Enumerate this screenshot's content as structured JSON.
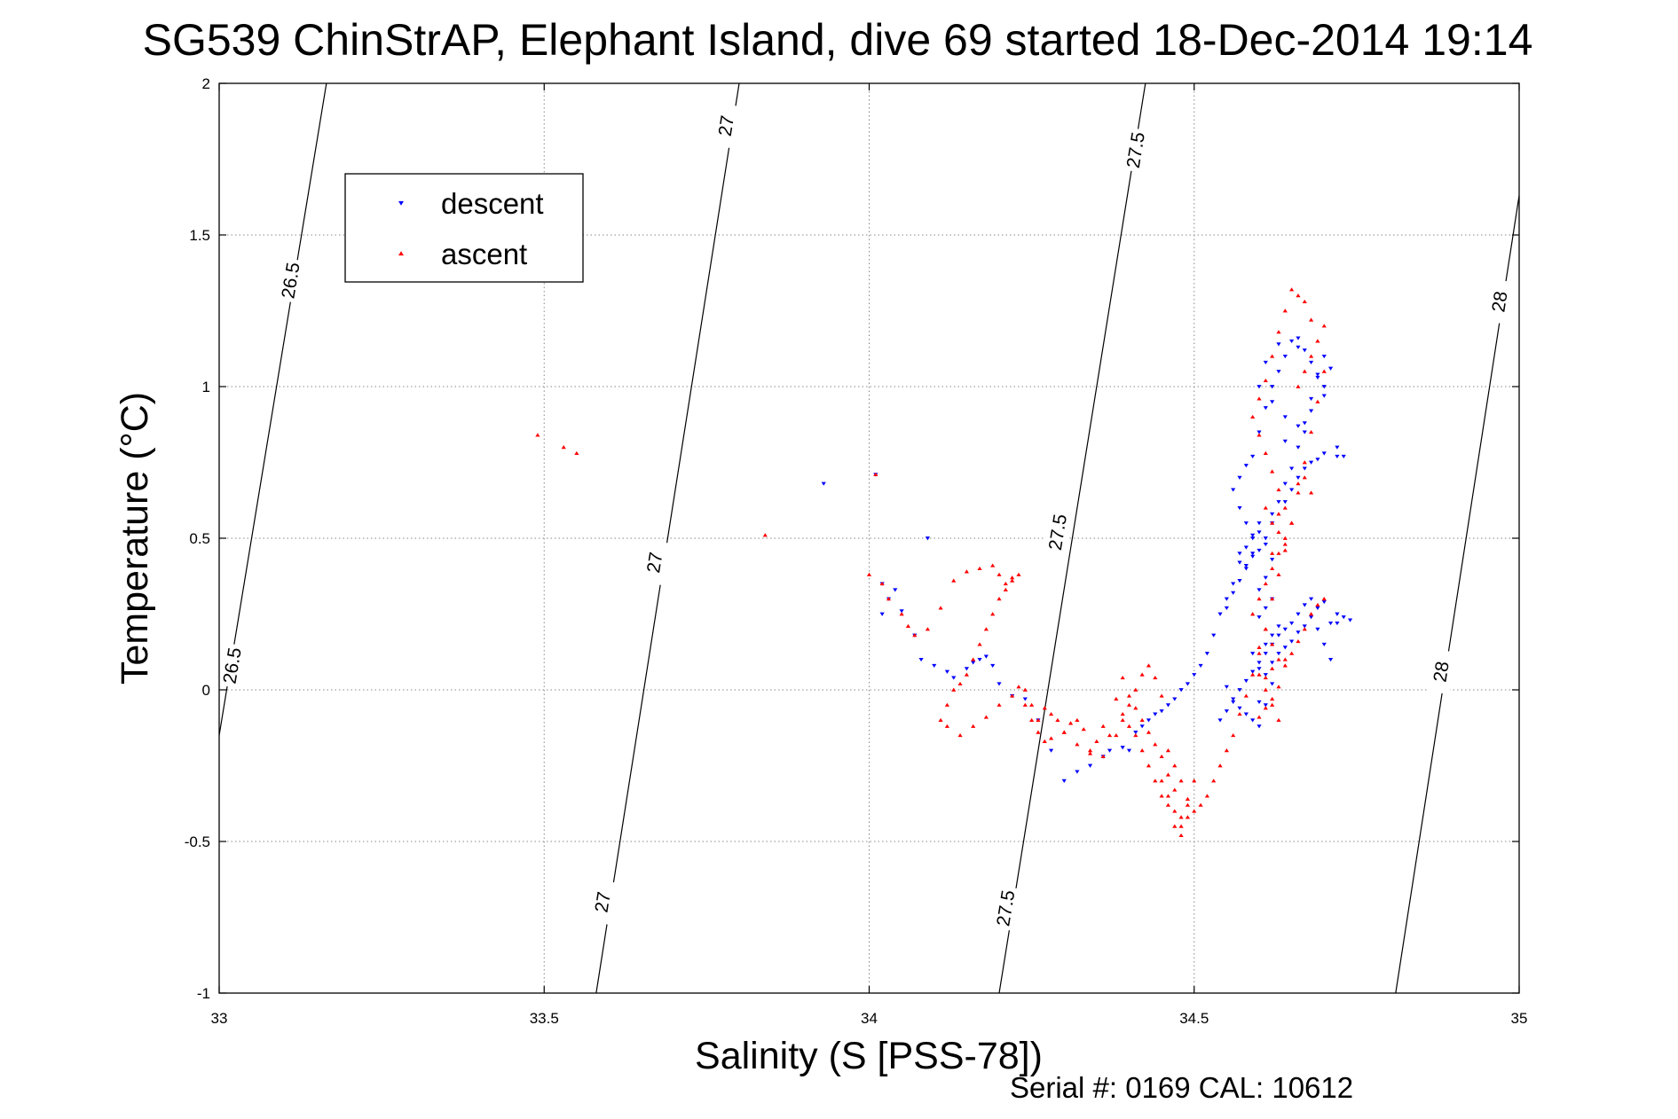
{
  "chart_data": {
    "type": "scatter",
    "title": "SG539 ChinStrAP, Elephant Island, dive 69 started 18-Dec-2014 19:14",
    "xlabel": "Salinity (S [PSS-78])",
    "ylabel": "Temperature (°C)",
    "xlim": [
      33,
      35
    ],
    "ylim": [
      -1,
      2
    ],
    "xticks": [
      33,
      33.5,
      34,
      34.5,
      35
    ],
    "yticks": [
      -1,
      -0.5,
      0,
      0.5,
      1,
      1.5,
      2
    ],
    "xtick_labels": [
      "33",
      "33.5",
      "34",
      "34.5",
      "35"
    ],
    "ytick_labels": [
      "-1",
      "-0.5",
      "0",
      "0.5",
      "1",
      "1.5",
      "2"
    ],
    "grid": true,
    "legend_position": "top-left",
    "footer": "Serial #: 0169 CAL: 10612",
    "density_contours": [
      {
        "label": "26.5",
        "points": [
          [
            33.0,
            -0.15
          ],
          [
            33.165,
            2.0
          ]
        ],
        "label_points": [
          [
            33.02,
            0.08
          ],
          [
            33.11,
            1.35
          ]
        ]
      },
      {
        "label": "27",
        "points": [
          [
            33.58,
            -1.0
          ],
          [
            33.8,
            2.0
          ]
        ],
        "label_points": [
          [
            33.59,
            -0.7
          ],
          [
            33.67,
            0.42
          ],
          [
            33.78,
            1.86
          ]
        ]
      },
      {
        "label": "27.5",
        "points": [
          [
            34.2,
            -1.0
          ],
          [
            34.425,
            2.0
          ]
        ],
        "label_points": [
          [
            34.21,
            -0.72
          ],
          [
            34.29,
            0.52
          ],
          [
            34.41,
            1.78
          ]
        ]
      },
      {
        "label": "28",
        "points": [
          [
            34.81,
            -1.0
          ],
          [
            35.0,
            1.63
          ]
        ],
        "label_points": [
          [
            34.88,
            0.06
          ],
          [
            34.97,
            1.28
          ]
        ]
      }
    ],
    "series": [
      {
        "name": "descent",
        "color": "#0000ff",
        "marker": "triangle-down",
        "x": [
          33.93,
          34.01,
          34.02,
          34.03,
          34.02,
          34.04,
          34.05,
          34.07,
          34.09,
          34.08,
          34.1,
          34.12,
          34.13,
          34.15,
          34.16,
          34.17,
          34.18,
          34.19,
          34.2,
          34.22,
          34.24,
          34.26,
          34.28,
          34.3,
          34.32,
          34.34,
          34.36,
          34.37,
          34.39,
          34.4,
          34.41,
          34.42,
          34.43,
          34.44,
          34.45,
          34.46,
          34.47,
          34.48,
          34.49,
          34.5,
          34.51,
          34.52,
          34.53,
          34.54,
          34.55,
          34.56,
          34.57,
          34.58,
          34.59,
          34.6,
          34.61,
          34.62,
          34.61,
          34.6,
          34.59,
          34.58,
          34.57,
          34.56,
          34.57,
          34.58,
          34.59,
          34.6,
          34.61,
          34.62,
          34.63,
          34.64,
          34.65,
          34.66,
          34.67,
          34.68,
          34.69,
          34.7,
          34.71,
          34.7,
          34.69,
          34.68,
          34.67,
          34.66,
          34.65,
          34.64,
          34.63,
          34.62,
          34.61,
          34.6,
          34.59,
          34.58,
          34.57,
          34.56,
          34.55,
          34.54,
          34.55,
          34.56,
          34.57,
          34.58,
          34.59,
          34.6,
          34.61,
          34.62,
          34.63,
          34.64,
          34.65,
          34.66,
          34.67,
          34.68,
          34.69,
          34.7,
          34.71,
          34.72,
          34.6,
          34.61,
          34.62,
          34.6,
          34.59,
          34.61,
          34.62,
          34.63,
          34.6,
          34.61,
          34.62,
          34.58,
          34.57,
          34.59,
          34.6,
          34.62,
          34.64,
          34.65,
          34.66,
          34.67,
          34.68,
          34.7,
          34.72,
          34.73,
          34.64,
          34.66,
          34.68,
          34.7,
          34.55,
          34.56,
          34.57,
          34.58,
          34.59,
          34.6,
          34.61,
          34.62,
          34.63,
          34.64,
          34.65,
          34.66,
          34.67,
          34.68,
          34.69,
          34.7,
          34.71,
          34.72,
          34.73,
          34.74,
          34.6,
          34.61,
          34.63,
          34.66,
          34.62,
          34.64,
          34.67,
          34.69,
          34.72
        ],
        "y": [
          0.68,
          0.71,
          0.25,
          0.3,
          0.35,
          0.33,
          0.26,
          0.18,
          0.5,
          0.1,
          0.08,
          0.06,
          0.04,
          0.07,
          0.09,
          0.1,
          0.11,
          0.08,
          0.02,
          -0.02,
          -0.03,
          -0.1,
          -0.2,
          -0.3,
          -0.27,
          -0.25,
          -0.22,
          -0.2,
          -0.19,
          -0.2,
          -0.14,
          -0.12,
          -0.1,
          -0.08,
          -0.07,
          -0.05,
          -0.03,
          0.0,
          0.02,
          0.05,
          0.08,
          0.12,
          0.18,
          0.25,
          0.3,
          0.35,
          0.42,
          0.47,
          0.51,
          0.52,
          0.48,
          0.43,
          0.37,
          0.33,
          0.45,
          0.55,
          0.6,
          0.66,
          0.7,
          0.74,
          0.77,
          0.85,
          0.93,
          1.0,
          1.05,
          1.1,
          1.15,
          1.16,
          1.12,
          1.08,
          1.04,
          1.0,
          1.06,
          1.1,
          1.03,
          0.96,
          0.88,
          0.8,
          0.73,
          0.68,
          0.62,
          0.55,
          0.5,
          0.46,
          0.44,
          0.41,
          0.36,
          0.32,
          0.27,
          -0.1,
          -0.07,
          -0.04,
          0.0,
          0.03,
          0.06,
          0.09,
          0.12,
          0.15,
          0.18,
          0.2,
          0.22,
          0.25,
          0.28,
          0.3,
          0.2,
          0.15,
          0.1,
          0.22,
          -0.12,
          -0.05,
          0.02,
          0.07,
          0.12,
          0.15,
          0.18,
          0.21,
          0.24,
          0.27,
          0.3,
          0.4,
          0.45,
          0.5,
          0.55,
          0.58,
          0.62,
          0.66,
          0.7,
          0.73,
          0.75,
          0.78,
          0.8,
          0.77,
          0.82,
          0.87,
          0.92,
          0.97,
          0.01,
          -0.03,
          -0.06,
          -0.08,
          -0.1,
          -0.04,
          0.05,
          0.09,
          0.12,
          0.14,
          0.16,
          0.19,
          0.21,
          0.24,
          0.27,
          0.29,
          0.22,
          0.25,
          0.24,
          0.23,
          1.0,
          1.08,
          1.14,
          1.13,
          0.95,
          0.9,
          0.85,
          0.76,
          0.77
        ]
      },
      {
        "name": "ascent",
        "color": "#ff0000",
        "marker": "triangle-up",
        "x": [
          33.49,
          33.53,
          33.55,
          33.84,
          34.01,
          34.0,
          34.02,
          34.03,
          34.05,
          34.06,
          34.07,
          34.09,
          34.11,
          34.13,
          34.15,
          34.17,
          34.19,
          34.2,
          34.21,
          34.22,
          34.23,
          34.22,
          34.21,
          34.2,
          34.19,
          34.18,
          34.17,
          34.16,
          34.15,
          34.14,
          34.13,
          34.12,
          34.11,
          34.12,
          34.14,
          34.16,
          34.18,
          34.2,
          34.22,
          34.23,
          34.24,
          34.25,
          34.26,
          34.27,
          34.28,
          34.3,
          34.32,
          34.34,
          34.36,
          34.38,
          34.39,
          34.4,
          34.41,
          34.42,
          34.43,
          34.44,
          34.45,
          34.46,
          34.47,
          34.48,
          34.49,
          34.5,
          34.51,
          34.52,
          34.53,
          34.54,
          34.55,
          34.56,
          34.57,
          34.58,
          34.59,
          34.6,
          34.61,
          34.62,
          34.63,
          34.64,
          34.65,
          34.66,
          34.67,
          34.68,
          34.69,
          34.7,
          34.69,
          34.68,
          34.67,
          34.66,
          34.65,
          34.64,
          34.63,
          34.62,
          34.61,
          34.6,
          34.59,
          34.6,
          34.61,
          34.62,
          34.63,
          34.64,
          34.65,
          34.64,
          34.63,
          34.62,
          34.61,
          34.6,
          34.59,
          34.61,
          34.62,
          34.63,
          34.6,
          34.61,
          34.62,
          34.63,
          34.64,
          34.65,
          34.66,
          34.67,
          34.68,
          34.69,
          34.7,
          34.47,
          34.48,
          34.49,
          34.46,
          34.45,
          34.44,
          34.43,
          34.42,
          34.41,
          34.4,
          34.39,
          34.38,
          34.37,
          34.36,
          34.35,
          34.34,
          34.33,
          34.32,
          34.31,
          34.3,
          34.29,
          34.28,
          34.27,
          34.26,
          34.25,
          34.24,
          34.48,
          34.49,
          34.5,
          34.47,
          34.46,
          34.45,
          34.44,
          34.43,
          34.42,
          34.41,
          34.4,
          34.39,
          34.45,
          34.46,
          34.47,
          34.48,
          34.6,
          34.61,
          34.62,
          34.63,
          34.61,
          34.62,
          34.64,
          34.6,
          34.61,
          34.62,
          34.63,
          34.64,
          34.62,
          34.63,
          34.66,
          34.67,
          34.68,
          34.69,
          34.7,
          34.68,
          34.67,
          34.66
        ],
        "y": [
          0.84,
          0.8,
          0.78,
          0.51,
          0.71,
          0.38,
          0.35,
          0.3,
          0.25,
          0.21,
          0.18,
          0.2,
          0.27,
          0.36,
          0.39,
          0.4,
          0.41,
          0.38,
          0.35,
          0.37,
          0.38,
          0.36,
          0.33,
          0.3,
          0.25,
          0.2,
          0.15,
          0.1,
          0.05,
          0.02,
          0.0,
          -0.05,
          -0.1,
          -0.12,
          -0.15,
          -0.12,
          -0.09,
          -0.05,
          -0.02,
          0.01,
          -0.05,
          -0.1,
          -0.14,
          -0.17,
          -0.16,
          -0.14,
          -0.18,
          -0.21,
          -0.22,
          -0.15,
          -0.1,
          -0.05,
          0.0,
          0.05,
          0.08,
          0.04,
          -0.02,
          -0.2,
          -0.25,
          -0.3,
          -0.36,
          -0.4,
          -0.38,
          -0.35,
          -0.3,
          -0.25,
          -0.2,
          -0.15,
          -0.08,
          -0.02,
          0.05,
          0.12,
          0.2,
          0.3,
          0.38,
          0.46,
          0.55,
          0.65,
          0.75,
          0.85,
          0.95,
          1.05,
          1.15,
          1.22,
          1.28,
          1.3,
          1.32,
          1.25,
          1.18,
          1.1,
          1.02,
          0.96,
          0.9,
          0.84,
          0.78,
          0.72,
          0.66,
          0.6,
          0.55,
          0.5,
          0.45,
          0.4,
          0.35,
          0.3,
          0.25,
          0.2,
          0.15,
          0.1,
          0.05,
          0.0,
          -0.05,
          -0.1,
          0.08,
          0.12,
          0.16,
          0.2,
          0.25,
          0.28,
          0.3,
          -0.45,
          -0.48,
          -0.42,
          -0.38,
          -0.35,
          -0.3,
          -0.25,
          -0.2,
          -0.15,
          -0.12,
          -0.08,
          -0.03,
          -0.15,
          -0.12,
          -0.17,
          -0.2,
          -0.13,
          -0.1,
          -0.11,
          -0.14,
          -0.1,
          -0.08,
          -0.06,
          -0.1,
          -0.05,
          0.0,
          -0.42,
          -0.38,
          -0.3,
          -0.33,
          -0.28,
          -0.22,
          -0.18,
          -0.14,
          -0.1,
          -0.06,
          -0.02,
          0.04,
          -0.3,
          -0.35,
          -0.4,
          -0.45,
          -0.09,
          -0.06,
          -0.03,
          0.01,
          0.04,
          0.07,
          0.1,
          0.14,
          0.6,
          0.55,
          0.58,
          0.48,
          0.45,
          0.52,
          1.0,
          1.05,
          1.1,
          1.15,
          1.2,
          0.65,
          0.7,
          0.68
        ]
      }
    ]
  }
}
